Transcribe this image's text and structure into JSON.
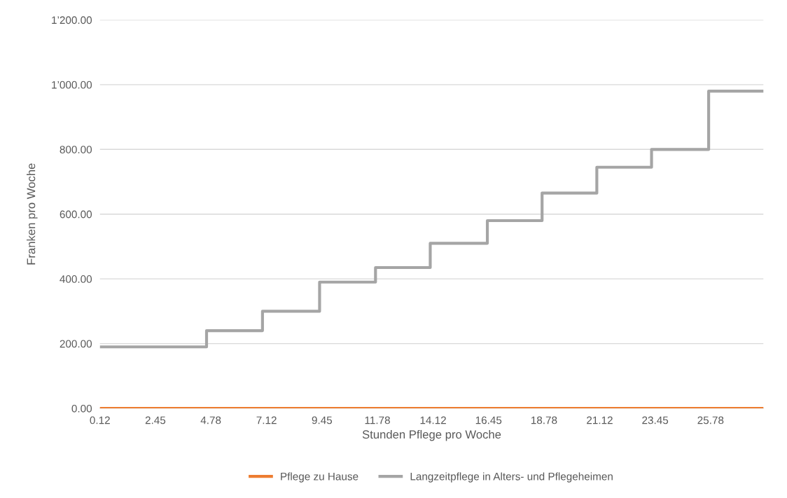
{
  "chart_data": {
    "type": "line",
    "xlabel": "Stunden Pflege pro Woche",
    "ylabel": "Franken pro Woche",
    "xlim": [
      0.12,
      28
    ],
    "xticks": [
      0.12,
      2.45,
      4.78,
      7.12,
      9.45,
      11.78,
      14.12,
      16.45,
      18.78,
      21.12,
      23.45,
      25.78
    ],
    "ylim": [
      0,
      1200
    ],
    "yticks": [
      {
        "value": 0,
        "label": "0.00"
      },
      {
        "value": 200,
        "label": "200.00"
      },
      {
        "value": 400,
        "label": "400.00"
      },
      {
        "value": 600,
        "label": "600.00"
      },
      {
        "value": 800,
        "label": "800.00"
      },
      {
        "value": 1000,
        "label": "1’000.00"
      },
      {
        "value": 1200,
        "label": "1’200.00"
      }
    ],
    "grid": "y",
    "legend": "bottom",
    "marker": "none",
    "line_style": "solid",
    "series": [
      {
        "name": "Pflege zu Hause",
        "color": "#ed7d31",
        "x": [
          0.12,
          28
        ],
        "values": [
          0,
          0
        ]
      },
      {
        "name": "Langzeitpflege in Alters- und Pflegeheimen",
        "color": "#a5a5a5",
        "type": "step",
        "x": [
          0.12,
          4.6,
          6.95,
          9.35,
          11.7,
          14.0,
          16.4,
          18.7,
          21.0,
          23.3,
          25.7,
          28
        ],
        "values": [
          190,
          240,
          300,
          390,
          435,
          510,
          580,
          665,
          745,
          800,
          980,
          980
        ]
      }
    ]
  }
}
